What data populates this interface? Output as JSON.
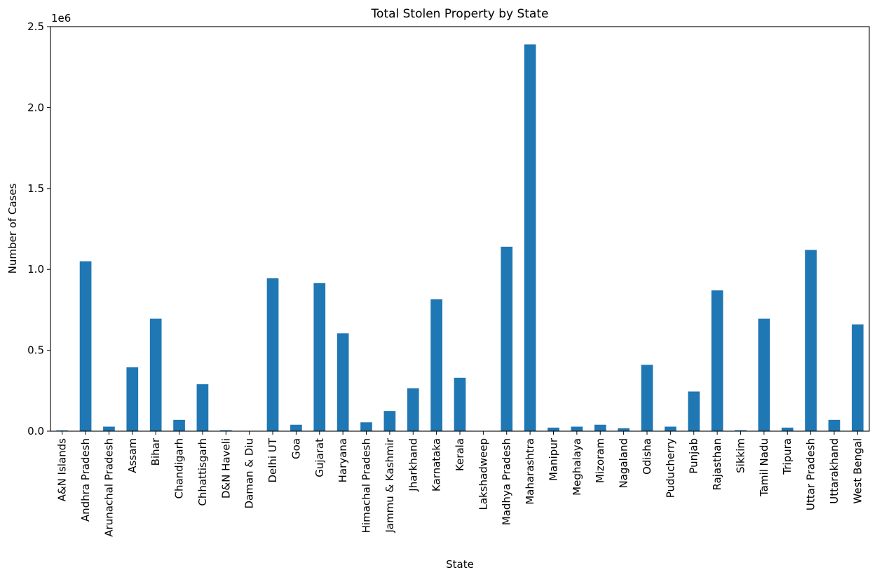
{
  "chart_data": {
    "type": "bar",
    "title": "Total Stolen Property by State",
    "xlabel": "State",
    "ylabel": "Number of Cases",
    "y_offset_text": "1e6",
    "y_scale": 1000000,
    "ylim": [
      0,
      2500000
    ],
    "y_ticks": [
      {
        "value": 0,
        "label": "0.0"
      },
      {
        "value": 500000,
        "label": "0.5"
      },
      {
        "value": 1000000,
        "label": "1.0"
      },
      {
        "value": 1500000,
        "label": "1.5"
      },
      {
        "value": 2000000,
        "label": "2.0"
      },
      {
        "value": 2500000,
        "label": "2.5"
      }
    ],
    "grid": false,
    "legend": "none",
    "bar_color": "#1f77b4",
    "categories": [
      "A&N Islands",
      "Andhra Pradesh",
      "Arunachal Pradesh",
      "Assam",
      "Bihar",
      "Chandigarh",
      "Chhattisgarh",
      "D&N Haveli",
      "Daman & Diu",
      "Delhi UT",
      "Goa",
      "Gujarat",
      "Haryana",
      "Himachal Pradesh",
      "Jammu & Kashmir",
      "Jharkhand",
      "Karnataka",
      "Kerala",
      "Lakshadweep",
      "Madhya Pradesh",
      "Maharashtra",
      "Manipur",
      "Meghalaya",
      "Mizoram",
      "Nagaland",
      "Odisha",
      "Puducherry",
      "Punjab",
      "Rajasthan",
      "Sikkim",
      "Tamil Nadu",
      "Tripura",
      "Uttar Pradesh",
      "Uttarakhand",
      "West Bengal"
    ],
    "values": [
      5000,
      1050000,
      28000,
      395000,
      695000,
      70000,
      290000,
      6000,
      2000,
      945000,
      40000,
      915000,
      605000,
      55000,
      125000,
      265000,
      815000,
      330000,
      500,
      1140000,
      2390000,
      22000,
      28000,
      40000,
      18000,
      410000,
      28000,
      245000,
      870000,
      6000,
      695000,
      22000,
      1120000,
      70000,
      660000
    ]
  }
}
